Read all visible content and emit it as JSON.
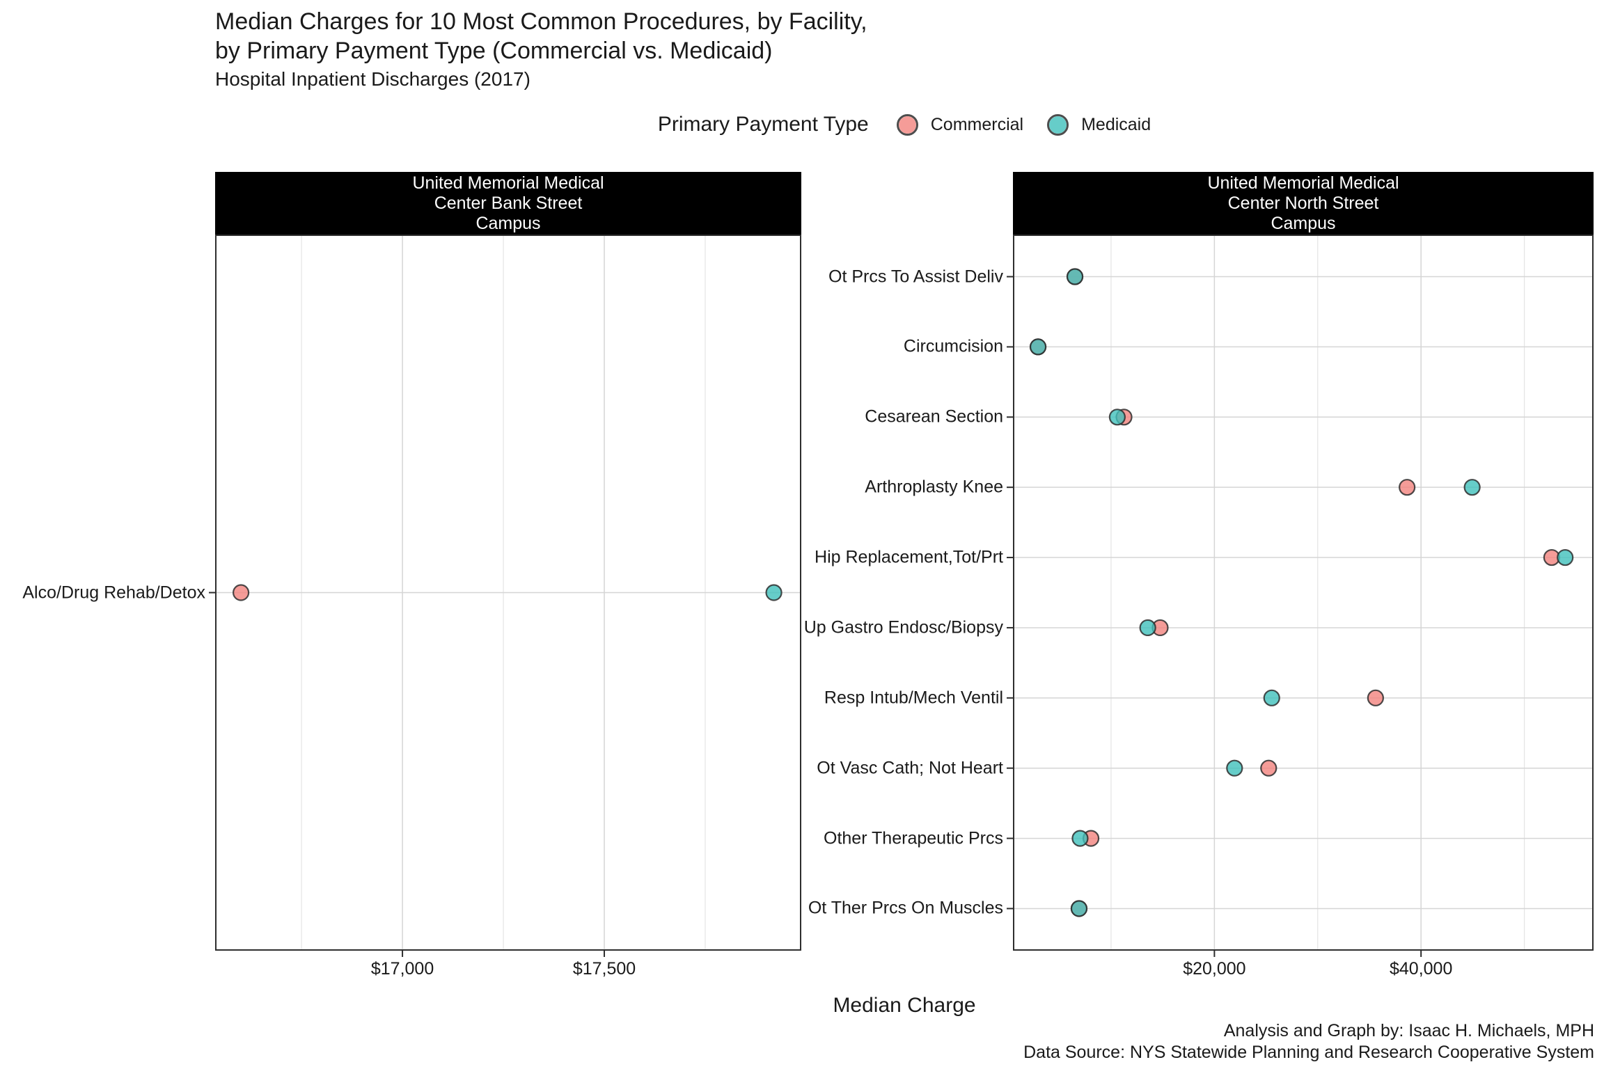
{
  "header": {
    "title_line1": "Median Charges for 10 Most Common Procedures, by Facility,",
    "title_line2": "by Primary Payment Type (Commercial vs. Medicaid)",
    "subtitle": "Hospital Inpatient Discharges (2017)"
  },
  "footer": {
    "line1": "Analysis and Graph by: Isaac H. Michaels, MPH",
    "line2": "Data Source: NYS Statewide Planning and Research Cooperative System"
  },
  "chart_data": {
    "type": "scatter",
    "x_axis_title": "Median Charge",
    "grid": true,
    "legend_position": "top",
    "legend": {
      "title": "Primary Payment Type",
      "series": [
        {
          "name": "Commercial",
          "fill": "#F2837E"
        },
        {
          "name": "Medicaid",
          "fill": "#40C0BB"
        }
      ]
    },
    "point_style": {
      "stroke": "#2E2E2E",
      "stroke_opacity": 0.85,
      "fill_opacity": 0.8,
      "radius": 11
    },
    "grid_style": {
      "major": "#D5D5D5",
      "minor": "#E4E4E4",
      "border": "#2E2E2E"
    },
    "strip_style": {
      "background": "#000000",
      "text": "#FFFFFF"
    },
    "facets": [
      {
        "title_lines": [
          "United Memorial Medical",
          "Center Bank Street",
          "Campus"
        ],
        "x_domain": [
          16536,
          17988
        ],
        "x_major_ticks": [
          {
            "value": 17000,
            "label": "$17,000"
          },
          {
            "value": 17500,
            "label": "$17,500"
          }
        ],
        "x_minor_ticks": [
          16750,
          17250,
          17750
        ],
        "rows": [
          {
            "label": "Alco/Drug Rehab/Detox",
            "commercial": 16600,
            "medicaid": 17920
          }
        ]
      },
      {
        "title_lines": [
          "United Memorial Medical",
          "Center North Street",
          "Campus"
        ],
        "x_domain": [
          500,
          56700
        ],
        "x_major_ticks": [
          {
            "value": 20000,
            "label": "$20,000"
          },
          {
            "value": 40000,
            "label": "$40,000"
          }
        ],
        "x_minor_ticks": [
          10000,
          30000,
          50000
        ],
        "rows": [
          {
            "label": "Ot Prcs To Assist Deliv",
            "commercial": 6500,
            "medicaid": 6500
          },
          {
            "label": "Circumcision",
            "commercial": 2930,
            "medicaid": 2930
          },
          {
            "label": "Cesarean Section",
            "commercial": 11250,
            "medicaid": 10600
          },
          {
            "label": "Arthroplasty Knee",
            "commercial": 38650,
            "medicaid": 44950
          },
          {
            "label": "Hip Replacement,Tot/Prt",
            "commercial": 52650,
            "medicaid": 53950
          },
          {
            "label": "Up Gastro Endosc/Biopsy",
            "commercial": 14750,
            "medicaid": 13550
          },
          {
            "label": "Resp Intub/Mech Ventil",
            "commercial": 35600,
            "medicaid": 25550
          },
          {
            "label": "Ot Vasc Cath; Not Heart",
            "commercial": 25250,
            "medicaid": 21950
          },
          {
            "label": "Other Therapeutic Prcs",
            "commercial": 8050,
            "medicaid": 7000
          },
          {
            "label": "Ot Ther Prcs On Muscles",
            "commercial": 6900,
            "medicaid": 6900
          }
        ]
      }
    ]
  }
}
